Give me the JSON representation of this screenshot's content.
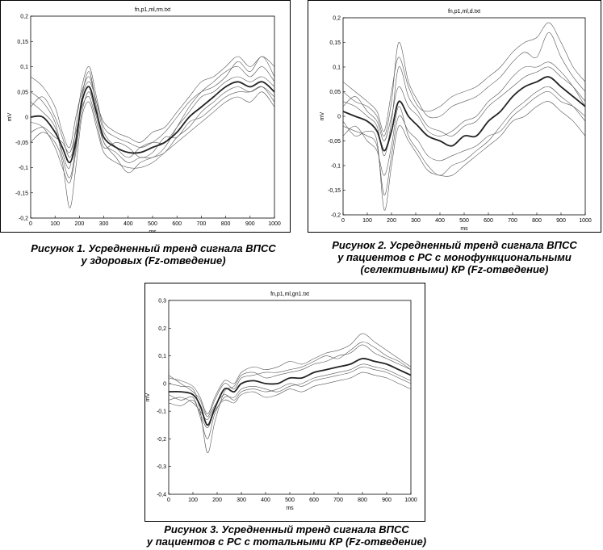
{
  "figures": [
    {
      "caption_lines": [
        "Рисунок 1. Усредненный тренд сигнала ВПСС",
        "у здоровых (Fz-отведение)"
      ]
    },
    {
      "caption_lines": [
        "Рисунок 2. Усредненный тренд сигнала ВПСС",
        "у пациентов с РС с монофункциональными",
        "(селективными) КР (Fz-отведение)"
      ]
    },
    {
      "caption_lines": [
        "Рисунок 3. Усредненный тренд сигнала ВПСС",
        "у пациентов с РС с тотальными КР (Fz-отведение)"
      ]
    }
  ],
  "chart_data": [
    {
      "type": "line",
      "title": "fn,p1,ml,rm.txt",
      "xlabel": "ms",
      "ylabel": "mV",
      "xlim": [
        0,
        1000
      ],
      "ylim": [
        -0.2,
        0.2
      ],
      "xticks": [
        "0",
        "100",
        "200",
        "300",
        "400",
        "500",
        "600",
        "700",
        "800",
        "900",
        "1000"
      ],
      "yticks": [
        "-0,2",
        "-0,15",
        "-0,1",
        "-0,05",
        "0",
        "0,05",
        "0,1",
        "0,15",
        "0,2"
      ],
      "grid": false,
      "x": [
        0,
        50,
        100,
        130,
        160,
        185,
        210,
        240,
        270,
        300,
        350,
        400,
        450,
        500,
        550,
        600,
        650,
        700,
        750,
        800,
        850,
        900,
        950,
        1000
      ],
      "series": [
        {
          "values": [
            0.0,
            0.0,
            -0.03,
            -0.06,
            -0.09,
            -0.05,
            0.03,
            0.06,
            0.01,
            -0.04,
            -0.06,
            -0.07,
            -0.07,
            -0.06,
            -0.05,
            -0.03,
            0.0,
            0.02,
            0.04,
            0.06,
            0.07,
            0.06,
            0.07,
            0.05
          ],
          "bold": true
        },
        {
          "values": [
            0.03,
            0.01,
            -0.02,
            -0.08,
            -0.12,
            -0.06,
            0.04,
            0.09,
            0.02,
            -0.05,
            -0.07,
            -0.09,
            -0.08,
            -0.08,
            -0.06,
            -0.02,
            0.02,
            0.05,
            0.07,
            0.09,
            0.1,
            0.08,
            0.1,
            0.07
          ]
        },
        {
          "values": [
            -0.03,
            -0.02,
            -0.04,
            -0.05,
            -0.07,
            -0.03,
            0.02,
            0.04,
            -0.01,
            -0.06,
            -0.05,
            -0.06,
            -0.08,
            -0.07,
            -0.04,
            -0.04,
            -0.01,
            0.0,
            0.02,
            0.04,
            0.05,
            0.05,
            0.06,
            0.03
          ]
        },
        {
          "values": [
            0.05,
            0.03,
            -0.01,
            -0.07,
            -0.1,
            -0.02,
            0.06,
            0.1,
            0.04,
            -0.02,
            -0.04,
            -0.05,
            -0.06,
            -0.05,
            -0.03,
            0.0,
            0.03,
            0.05,
            0.06,
            0.08,
            0.11,
            0.09,
            0.12,
            0.08
          ]
        },
        {
          "values": [
            -0.05,
            -0.03,
            -0.05,
            -0.09,
            -0.18,
            -0.1,
            0.0,
            0.03,
            -0.02,
            -0.07,
            -0.09,
            -0.1,
            -0.1,
            -0.09,
            -0.07,
            -0.05,
            -0.03,
            -0.01,
            0.01,
            0.03,
            0.04,
            0.03,
            0.05,
            0.02
          ]
        },
        {
          "values": [
            0.02,
            0.04,
            0.0,
            -0.04,
            -0.08,
            -0.04,
            0.04,
            0.07,
            0.03,
            -0.03,
            -0.06,
            -0.08,
            -0.06,
            -0.05,
            -0.05,
            -0.02,
            0.01,
            0.04,
            0.05,
            0.07,
            0.08,
            0.07,
            0.08,
            0.06
          ]
        },
        {
          "values": [
            -0.01,
            -0.02,
            -0.06,
            -0.1,
            -0.13,
            -0.07,
            0.01,
            0.05,
            0.0,
            -0.05,
            -0.08,
            -0.11,
            -0.09,
            -0.08,
            -0.07,
            -0.04,
            -0.02,
            0.01,
            0.03,
            0.05,
            0.06,
            0.05,
            0.06,
            0.04
          ]
        },
        {
          "values": [
            0.08,
            0.06,
            0.02,
            -0.03,
            -0.06,
            0.0,
            0.05,
            0.08,
            0.03,
            -0.01,
            -0.03,
            -0.04,
            -0.05,
            -0.03,
            -0.02,
            0.01,
            0.04,
            0.07,
            0.08,
            0.1,
            0.12,
            0.1,
            0.12,
            0.1
          ]
        }
      ]
    },
    {
      "type": "line",
      "title": "fn,p1,ml,d.txt",
      "xlabel": "ms",
      "ylabel": "mV",
      "xlim": [
        0,
        1000
      ],
      "ylim": [
        -0.2,
        0.2
      ],
      "xticks": [
        "0",
        "100",
        "200",
        "300",
        "400",
        "500",
        "600",
        "700",
        "800",
        "900",
        "1000"
      ],
      "yticks": [
        "-0,2",
        "-0,15",
        "-0,1",
        "-0,05",
        "0",
        "0,05",
        "0,1",
        "0,15",
        "0,2"
      ],
      "grid": false,
      "x": [
        0,
        50,
        100,
        140,
        170,
        200,
        230,
        270,
        310,
        350,
        400,
        450,
        500,
        550,
        600,
        650,
        700,
        750,
        800,
        850,
        900,
        950,
        1000
      ],
      "series": [
        {
          "values": [
            0.01,
            0.0,
            -0.01,
            -0.03,
            -0.07,
            -0.03,
            0.03,
            0.0,
            -0.02,
            -0.04,
            -0.05,
            -0.06,
            -0.04,
            -0.04,
            -0.01,
            0.01,
            0.04,
            0.06,
            0.07,
            0.08,
            0.06,
            0.04,
            0.02
          ],
          "bold": true
        },
        {
          "values": [
            0.03,
            0.02,
            0.0,
            -0.02,
            -0.08,
            -0.01,
            0.1,
            0.04,
            0.01,
            -0.02,
            -0.03,
            -0.04,
            -0.02,
            -0.01,
            0.02,
            0.04,
            0.06,
            0.08,
            0.09,
            0.1,
            0.08,
            0.06,
            0.03
          ]
        },
        {
          "values": [
            -0.02,
            -0.03,
            -0.04,
            -0.06,
            -0.16,
            -0.08,
            0.0,
            -0.03,
            -0.05,
            -0.08,
            -0.09,
            -0.08,
            -0.07,
            -0.06,
            -0.04,
            -0.03,
            0.0,
            0.02,
            0.04,
            0.05,
            0.03,
            0.02,
            0.0
          ]
        },
        {
          "values": [
            0.05,
            0.03,
            0.02,
            0.0,
            -0.04,
            0.03,
            0.15,
            0.07,
            0.03,
            0.0,
            0.0,
            0.02,
            0.03,
            0.04,
            0.06,
            0.08,
            0.11,
            0.13,
            0.12,
            0.17,
            0.12,
            0.08,
            0.05
          ]
        },
        {
          "values": [
            -0.04,
            -0.02,
            -0.05,
            -0.07,
            -0.12,
            -0.06,
            0.02,
            -0.04,
            -0.07,
            -0.1,
            -0.12,
            -0.1,
            -0.09,
            -0.07,
            -0.05,
            -0.02,
            0.01,
            0.03,
            0.05,
            0.06,
            0.04,
            0.02,
            -0.01
          ]
        },
        {
          "values": [
            0.02,
            0.04,
            0.01,
            -0.01,
            -0.05,
            0.0,
            0.06,
            0.02,
            0.0,
            -0.03,
            -0.04,
            -0.03,
            -0.01,
            0.0,
            0.03,
            0.05,
            0.08,
            0.1,
            0.1,
            0.11,
            0.09,
            0.06,
            0.02
          ]
        },
        {
          "values": [
            -0.01,
            -0.04,
            -0.03,
            -0.05,
            -0.19,
            -0.1,
            -0.02,
            -0.05,
            -0.08,
            -0.11,
            -0.12,
            -0.12,
            -0.1,
            -0.08,
            -0.06,
            -0.04,
            -0.01,
            0.0,
            0.02,
            0.03,
            0.01,
            -0.01,
            -0.04
          ]
        },
        {
          "values": [
            0.07,
            0.05,
            0.03,
            0.01,
            -0.03,
            0.05,
            0.12,
            0.06,
            0.02,
            0.01,
            0.02,
            0.04,
            0.05,
            0.06,
            0.08,
            0.1,
            0.13,
            0.15,
            0.16,
            0.19,
            0.15,
            0.1,
            0.07
          ]
        }
      ]
    },
    {
      "type": "line",
      "title": "fn,p1,ml,gn1.txt",
      "xlabel": "ms",
      "ylabel": "mV",
      "xlim": [
        0,
        1000
      ],
      "ylim": [
        -0.4,
        0.3
      ],
      "xticks": [
        "0",
        "100",
        "200",
        "300",
        "400",
        "500",
        "600",
        "700",
        "800",
        "900",
        "1000"
      ],
      "yticks": [
        "-0,4",
        "-0,3",
        "-0,2",
        "-0,1",
        "0",
        "0,1",
        "0,2",
        "0,3"
      ],
      "grid": false,
      "x": [
        0,
        50,
        100,
        130,
        160,
        190,
        230,
        270,
        300,
        350,
        400,
        450,
        500,
        550,
        600,
        650,
        700,
        750,
        800,
        850,
        900,
        950,
        1000
      ],
      "series": [
        {
          "values": [
            -0.03,
            -0.03,
            -0.04,
            -0.08,
            -0.15,
            -0.09,
            -0.02,
            -0.03,
            0.0,
            0.01,
            0.0,
            0.0,
            0.02,
            0.02,
            0.04,
            0.05,
            0.06,
            0.07,
            0.09,
            0.08,
            0.07,
            0.05,
            0.03
          ],
          "bold": true
        },
        {
          "values": [
            0.0,
            -0.01,
            -0.02,
            -0.1,
            -0.25,
            -0.14,
            -0.03,
            -0.01,
            0.03,
            0.04,
            0.02,
            0.03,
            0.04,
            0.05,
            0.07,
            0.08,
            0.1,
            0.11,
            0.14,
            0.11,
            0.09,
            0.07,
            0.05
          ]
        },
        {
          "values": [
            -0.06,
            -0.05,
            -0.07,
            -0.1,
            -0.13,
            -0.08,
            -0.04,
            -0.06,
            -0.03,
            -0.02,
            -0.03,
            -0.02,
            0.0,
            -0.01,
            0.01,
            0.02,
            0.03,
            0.04,
            0.06,
            0.05,
            0.04,
            0.02,
            0.0
          ]
        },
        {
          "values": [
            0.02,
            0.01,
            -0.01,
            -0.05,
            -0.11,
            -0.05,
            0.01,
            0.0,
            0.04,
            0.06,
            0.05,
            0.06,
            0.08,
            0.07,
            0.09,
            0.11,
            0.12,
            0.14,
            0.18,
            0.15,
            0.12,
            0.09,
            0.06
          ]
        },
        {
          "values": [
            -0.04,
            -0.06,
            -0.05,
            -0.12,
            -0.2,
            -0.11,
            -0.05,
            -0.05,
            -0.02,
            -0.01,
            -0.02,
            -0.03,
            -0.01,
            0.0,
            0.02,
            0.03,
            0.04,
            0.05,
            0.07,
            0.06,
            0.05,
            0.03,
            0.01
          ]
        },
        {
          "values": [
            0.03,
            0.0,
            -0.03,
            -0.06,
            -0.12,
            -0.06,
            0.0,
            -0.02,
            0.02,
            0.03,
            0.04,
            0.04,
            0.05,
            0.06,
            0.08,
            0.1,
            0.09,
            0.12,
            0.15,
            0.13,
            0.1,
            0.08,
            0.05
          ]
        },
        {
          "values": [
            -0.07,
            -0.08,
            -0.06,
            -0.11,
            -0.16,
            -0.1,
            -0.06,
            -0.07,
            -0.04,
            -0.03,
            -0.05,
            -0.04,
            -0.02,
            -0.03,
            -0.01,
            0.0,
            0.01,
            0.02,
            0.04,
            0.03,
            0.02,
            0.0,
            -0.02
          ]
        }
      ]
    }
  ]
}
